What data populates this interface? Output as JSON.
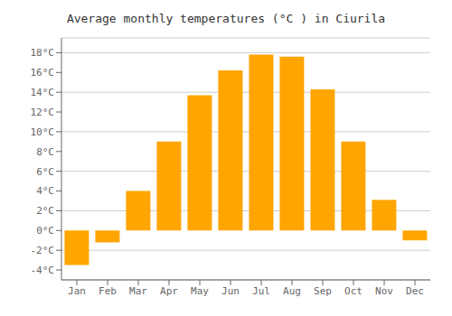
{
  "chart_data": {
    "type": "bar",
    "title": "Average monthly temperatures (°C ) in Ciurila",
    "categories": [
      "Jan",
      "Feb",
      "Mar",
      "Apr",
      "May",
      "Jun",
      "Jul",
      "Aug",
      "Sep",
      "Oct",
      "Nov",
      "Dec"
    ],
    "values": [
      -3.5,
      -1.2,
      4.0,
      9.0,
      13.7,
      16.2,
      17.8,
      17.6,
      14.3,
      9.0,
      3.1,
      -1.0
    ],
    "color": "#FFA500",
    "ylim": [
      -5,
      19.5
    ],
    "yticks": [
      {
        "value": -4,
        "label": "-4°C"
      },
      {
        "value": -2,
        "label": "-2°C"
      },
      {
        "value": 0,
        "label": "0°C"
      },
      {
        "value": 2,
        "label": "2°C"
      },
      {
        "value": 4,
        "label": "4°C"
      },
      {
        "value": 6,
        "label": "6°C"
      },
      {
        "value": 8,
        "label": "8°C"
      },
      {
        "value": 10,
        "label": "10°C"
      },
      {
        "value": 12,
        "label": "12°C"
      },
      {
        "value": 14,
        "label": "14°C"
      },
      {
        "value": 16,
        "label": "16°C"
      },
      {
        "value": 18,
        "label": "18°C"
      }
    ],
    "grid": true
  }
}
